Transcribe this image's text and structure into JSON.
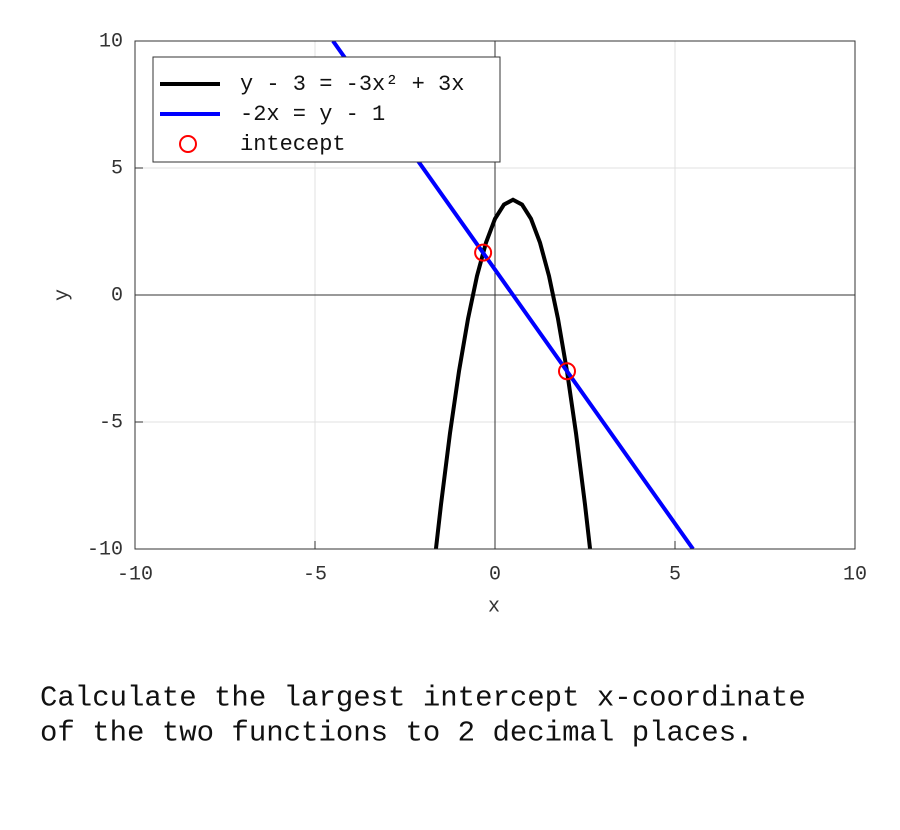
{
  "chart_data": {
    "type": "line",
    "xlabel": "x",
    "ylabel": "y",
    "xlim": [
      -10,
      10
    ],
    "ylim": [
      -10,
      10
    ],
    "xticks": [
      -10,
      -5,
      0,
      5,
      10
    ],
    "yticks": [
      -10,
      -5,
      0,
      5,
      10
    ],
    "grid": true,
    "legend": "upper left",
    "series": [
      {
        "name": "y - 3 = -3x² + 3x",
        "color": "#000000",
        "type": "line",
        "x": [
          -1.64,
          -1.5,
          -1.25,
          -1,
          -0.75,
          -0.5,
          -0.25,
          0,
          0.25,
          0.5,
          0.75,
          1,
          1.25,
          1.5,
          1.75,
          2,
          2.25,
          2.5,
          2.64
        ],
        "values": [
          -9.99,
          -8.25,
          -5.44,
          -3,
          -0.94,
          0.75,
          2.06,
          3,
          3.56,
          3.75,
          3.56,
          3,
          2.06,
          0.75,
          -0.94,
          -3,
          -5.44,
          -8.25,
          -9.99
        ]
      },
      {
        "name": "-2x = y - 1",
        "color": "#0000ff",
        "type": "line",
        "x": [
          -4.5,
          5.5
        ],
        "values": [
          10,
          -10
        ]
      },
      {
        "name": "intecept",
        "color": "#ff0000",
        "type": "scatter",
        "x": [
          -0.33,
          2
        ],
        "values": [
          1.67,
          -3
        ]
      }
    ]
  },
  "question": [
    "Calculate the largest intercept x-coordinate",
    "of the two functions to 2 decimal places."
  ]
}
